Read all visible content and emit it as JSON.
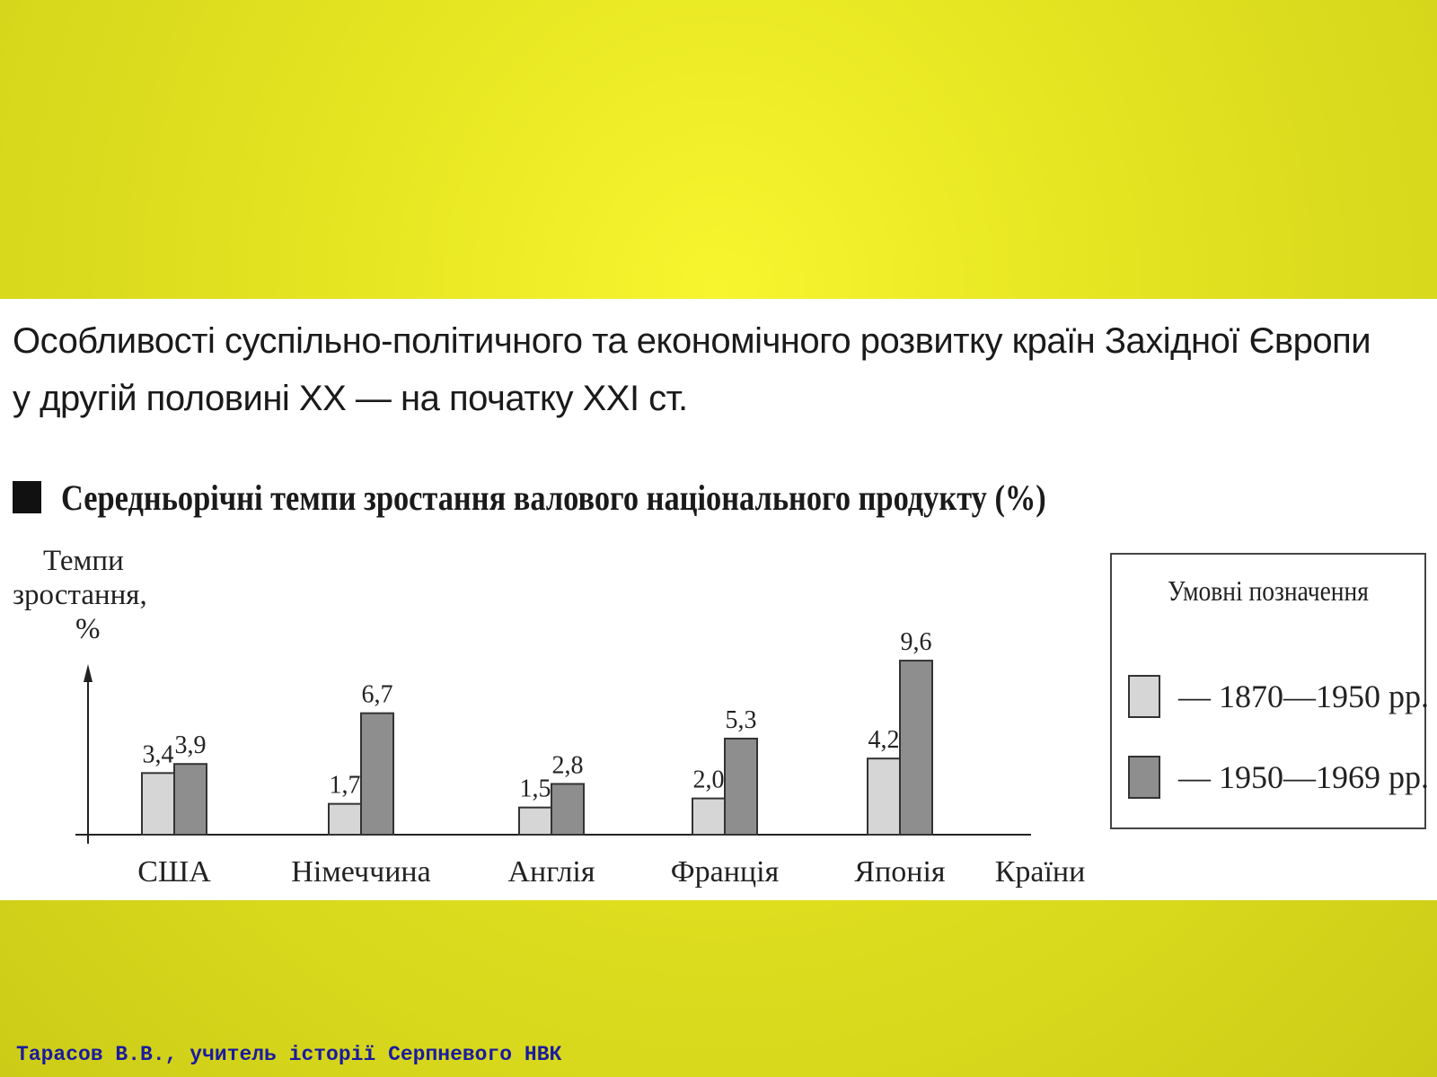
{
  "slide": {
    "title_line1": "Особливості суспільно-політичного та економічного розвитку країн Західної Європи",
    "title_line2": "у другій половині XX — на початку XXI ст.",
    "footer": "Тарасов В.В., учитель історії Серпневого НВК"
  },
  "chart_data": {
    "type": "bar",
    "title": "Середньорічні темпи зростання валового національного продукту (%)",
    "ylabel": "Темпи зростання, %",
    "xlabel": "Країни",
    "categories": [
      "США",
      "Німеччина",
      "Англія",
      "Франція",
      "Японія"
    ],
    "series": [
      {
        "name": "— 1870—1950 рр.",
        "values": [
          3.4,
          1.7,
          1.5,
          2.0,
          4.2
        ],
        "labels": [
          "3,4",
          "1,7",
          "1,5",
          "2,0",
          "4,2"
        ],
        "color": "#d6d6d6"
      },
      {
        "name": "— 1950—1969 рр.",
        "values": [
          3.9,
          6.7,
          2.8,
          5.3,
          9.6
        ],
        "labels": [
          "3,9",
          "6,7",
          "2,8",
          "5,3",
          "9,6"
        ],
        "color": "#8e8e8e"
      }
    ],
    "ylim": [
      0,
      11
    ],
    "legend_title": "Умовні позначення",
    "legend_position": "right",
    "grid": false
  }
}
